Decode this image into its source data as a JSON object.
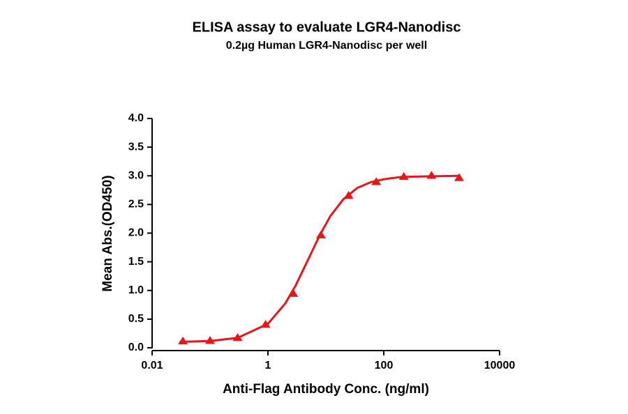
{
  "chart_data": {
    "type": "scatter",
    "title": "ELISA assay to evaluate LGR4-Nanodisc",
    "subtitle": "0.2µg Human LGR4-Nanodisc per well",
    "xlabel": "Anti-Flag Antibody Conc. (ng/ml)",
    "ylabel": "Mean Abs.(OD450)",
    "xscale": "log",
    "xlim": [
      0.01,
      10000
    ],
    "xticks": [
      0.01,
      1,
      100,
      10000
    ],
    "ylim": [
      0,
      4
    ],
    "yticks": [
      {
        "value": 0,
        "label": "0.0"
      },
      {
        "value": 0.5,
        "label": "0.5"
      },
      {
        "value": 1,
        "label": "1.0"
      },
      {
        "value": 1.5,
        "label": "1.5"
      },
      {
        "value": 2,
        "label": "2.0"
      },
      {
        "value": 2.5,
        "label": "2.5"
      },
      {
        "value": 3,
        "label": "3.0"
      },
      {
        "value": 3.5,
        "label": "3.5"
      },
      {
        "value": 4,
        "label": "4.0"
      }
    ],
    "series": [
      {
        "color": "#e8151b",
        "marker": "triangle",
        "x": [
          0.034,
          0.1,
          0.3,
          0.91,
          2.74,
          8.23,
          24.7,
          74.1,
          222,
          667,
          2000
        ],
        "values": [
          0.11,
          0.12,
          0.17,
          0.4,
          0.94,
          1.96,
          2.65,
          2.89,
          2.98,
          3.0,
          2.96
        ]
      },
      {
        "color": "#e8151b",
        "marker": "line",
        "x": [
          0.03,
          0.1,
          0.3,
          1,
          2,
          3,
          5,
          8,
          12,
          20,
          35,
          60,
          100,
          200,
          500,
          2000
        ],
        "values": [
          0.104,
          0.118,
          0.173,
          0.419,
          0.776,
          1.085,
          1.55,
          1.98,
          2.3,
          2.59,
          2.79,
          2.89,
          2.94,
          2.98,
          2.99,
          3.0
        ]
      }
    ]
  }
}
